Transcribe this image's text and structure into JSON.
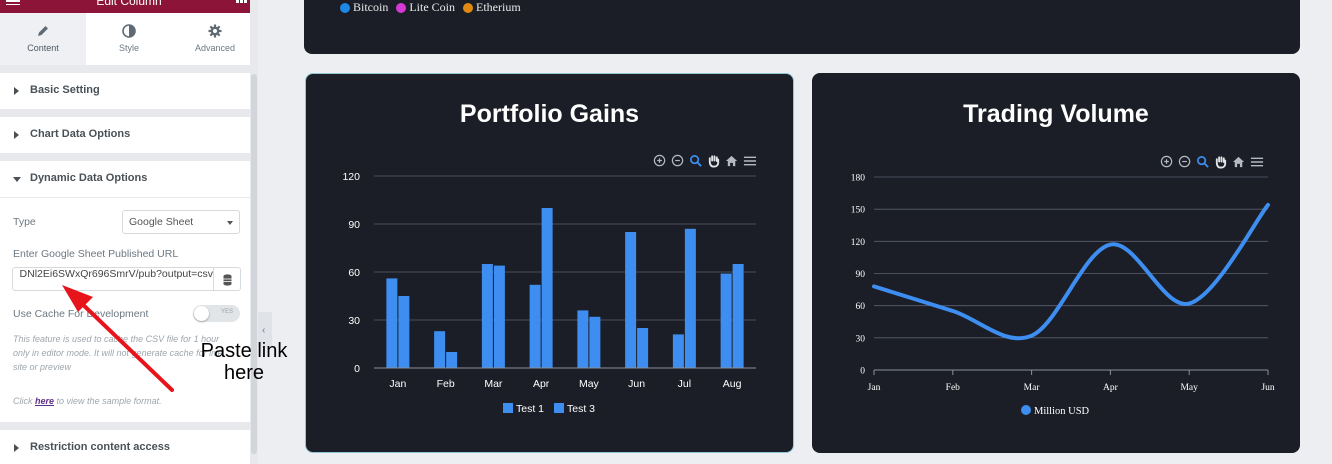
{
  "panel": {
    "title": "Edit Column",
    "tabs": [
      {
        "label": "Content",
        "icon": "pencil-icon"
      },
      {
        "label": "Style",
        "icon": "contrast-icon"
      },
      {
        "label": "Advanced",
        "icon": "gear-icon"
      }
    ],
    "sections": {
      "basic": "Basic Setting",
      "chart_data": "Chart Data Options",
      "dynamic": "Dynamic Data Options",
      "restriction": "Restriction content access"
    },
    "type_label": "Type",
    "type_value": "Google Sheet",
    "url_label": "Enter Google Sheet Published URL",
    "url_value": "DNl2Ei6SWxQr696SmrV/pub?output=csv",
    "cache_label": "Use Cache For Development",
    "cache_toggle_text": "YES",
    "cache_note": "This feature is used to cache the CSV file for 1 hour only in editor mode. It will not generate cache for live site or preview",
    "sample_prefix": "Click",
    "sample_link": "here",
    "sample_suffix": "to view the sample format."
  },
  "annotation": {
    "text": "Paste link here",
    "color": "#e8141c"
  },
  "top_card": {
    "legend": [
      {
        "name": "Bitcoin",
        "color": "#1e88e5"
      },
      {
        "name": "Lite Coin",
        "color": "#d63ad6"
      },
      {
        "name": "Etherium",
        "color": "#e08a12"
      }
    ]
  },
  "left_chart": {
    "title": "Portfolio Gains",
    "toolbar": [
      "zoom-in-icon",
      "zoom-out-icon",
      "magnifier-icon",
      "pan-hand-icon",
      "home-icon",
      "menu-icon"
    ]
  },
  "right_chart": {
    "title": "Trading Volume",
    "toolbar": [
      "zoom-in-icon",
      "zoom-out-icon",
      "magnifier-icon",
      "pan-hand-icon",
      "home-icon",
      "menu-icon"
    ]
  },
  "chart_data": [
    {
      "type": "bar",
      "title": "Portfolio Gains",
      "categories": [
        "Jan",
        "Feb",
        "Mar",
        "Apr",
        "May",
        "Jun",
        "Jul",
        "Aug"
      ],
      "series": [
        {
          "name": "Test 1",
          "values": [
            56,
            23,
            65,
            52,
            36,
            85,
            21,
            59
          ],
          "color": "#3d8ef0"
        },
        {
          "name": "Test 3",
          "values": [
            45,
            10,
            64,
            100,
            32,
            25,
            87,
            65
          ],
          "color": "#3d8ef0"
        }
      ],
      "ylim": [
        0,
        120
      ],
      "yticks": [
        0,
        30,
        60,
        90,
        120
      ],
      "grid": true,
      "legend": "bottom"
    },
    {
      "type": "line",
      "title": "Trading Volume",
      "categories": [
        "Jan",
        "Feb",
        "Mar",
        "Apr",
        "May",
        "Jun"
      ],
      "series": [
        {
          "name": "Million USD",
          "values": [
            78,
            55,
            32,
            117,
            62,
            154
          ],
          "color": "#3d8ef0"
        }
      ],
      "ylim": [
        0,
        180
      ],
      "yticks": [
        0,
        30,
        60,
        90,
        120,
        150,
        180
      ],
      "grid": true,
      "legend": "bottom"
    }
  ]
}
